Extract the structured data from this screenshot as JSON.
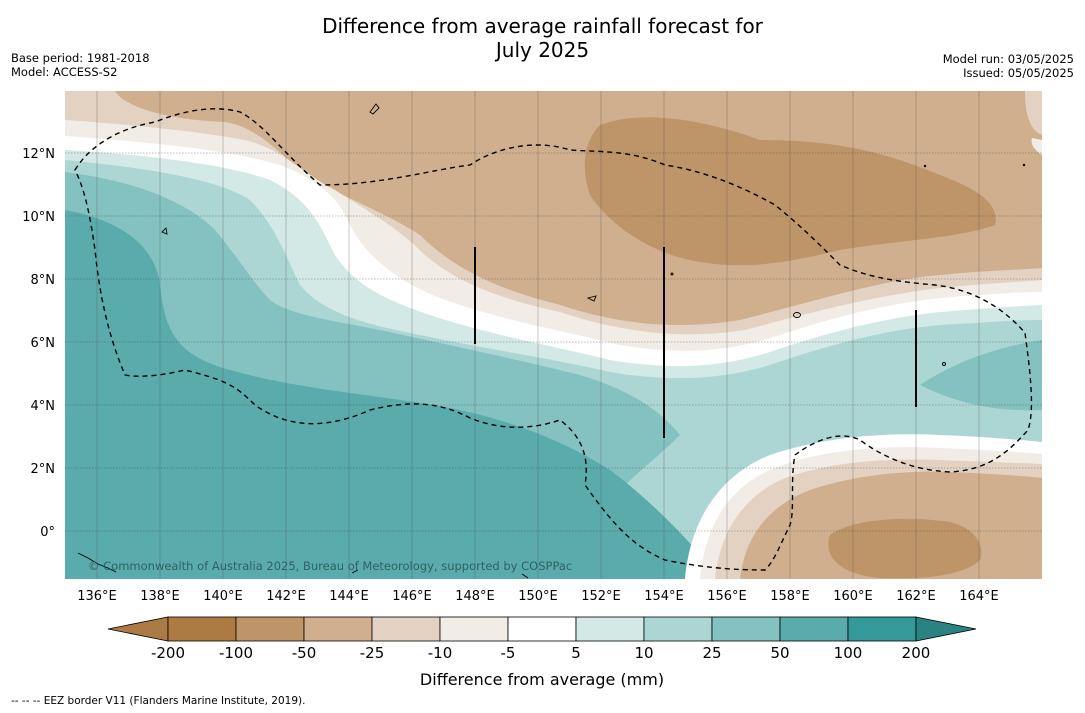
{
  "title_line1": "Difference from average rainfall forecast for",
  "title_line2": "July 2025",
  "meta_left": [
    "Base period: 1981-2018",
    "Model: ACCESS-S2"
  ],
  "meta_right": [
    "Model run: 03/05/2025",
    "Issued: 05/05/2025"
  ],
  "map": {
    "lon_ticks": [
      "136°E",
      "138°E",
      "140°E",
      "142°E",
      "144°E",
      "146°E",
      "148°E",
      "150°E",
      "152°E",
      "154°E",
      "156°E",
      "158°E",
      "160°E",
      "162°E",
      "164°E"
    ],
    "lat_ticks": [
      "12°N",
      "10°N",
      "8°N",
      "6°N",
      "4°N",
      "2°N",
      "0°"
    ],
    "copyright": "© Commonwealth of Australia 2025, Bureau of Meteorology, supported by COSPPac",
    "eez_line_style": "dashed"
  },
  "colorbar": {
    "label": "Difference from average (mm)",
    "ticks": [
      "-200",
      "-100",
      "-50",
      "-25",
      "-10",
      "-5",
      "5",
      "10",
      "25",
      "50",
      "100",
      "200"
    ],
    "colors": [
      "#ac7a43",
      "#ad7b41",
      "#be9469",
      "#d0af8e",
      "#e3d2c1",
      "#f2ece6",
      "#ffffff",
      "#d3e9e6",
      "#acd6d4",
      "#83c2c0",
      "#5aabac",
      "#35999a",
      "#2a8281"
    ]
  },
  "footnote": "--  --  -- EEZ border V11 (Flanders Marine Institute, 2019)."
}
